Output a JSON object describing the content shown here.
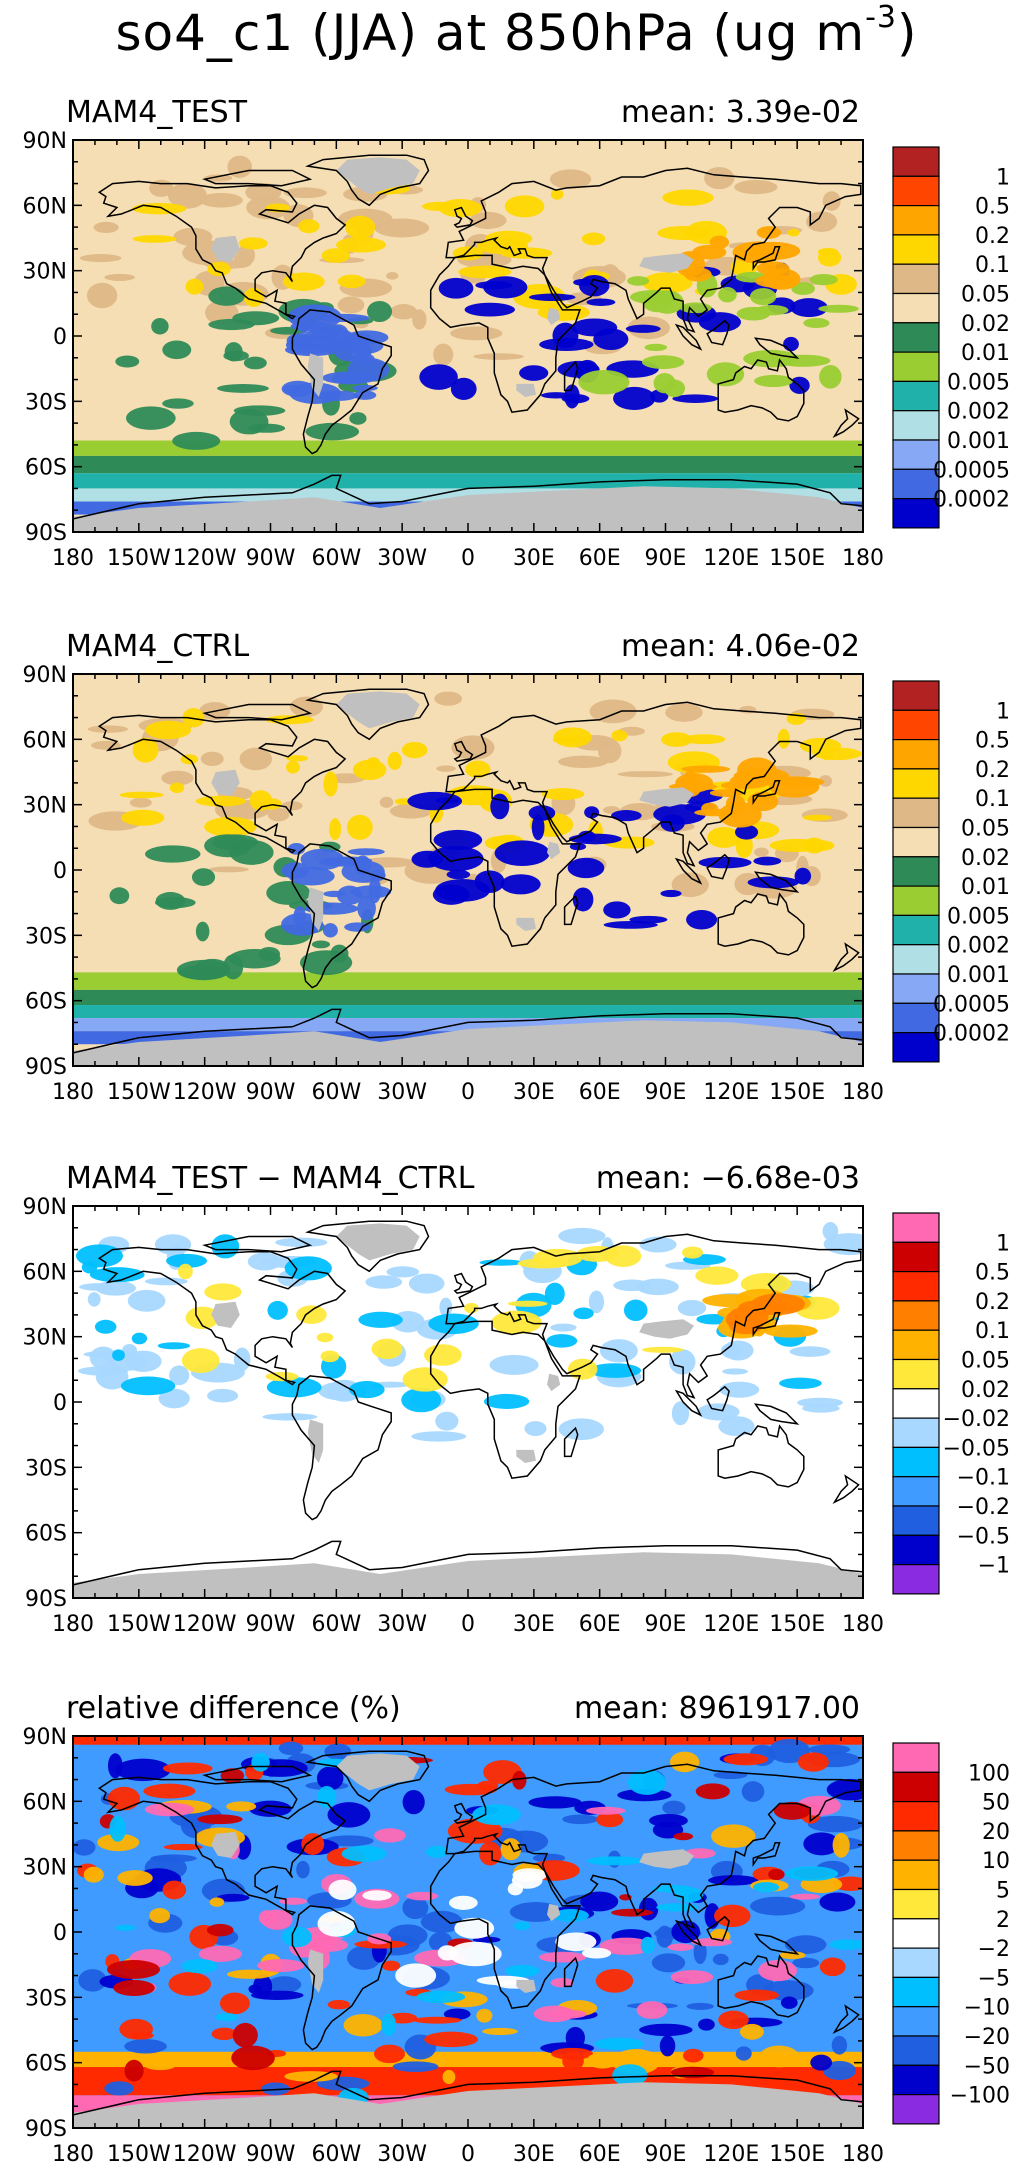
{
  "figure": {
    "title_main": "so4_c1 (JJA) at 850hPa (ug m",
    "title_exp": "-3",
    "title_close": ")"
  },
  "x_ticks": [
    "180",
    "150W",
    "120W",
    "90W",
    "60W",
    "30W",
    "0",
    "30E",
    "60E",
    "90E",
    "120E",
    "150E",
    "180"
  ],
  "y_ticks": [
    "90N",
    "60N",
    "30N",
    "0",
    "30S",
    "60S",
    "90S"
  ],
  "panels": [
    {
      "id": "test",
      "title": "MAM4_TEST",
      "mean_text": "mean: 3.39e-02",
      "colorbar": {
        "colors": [
          "#b22222",
          "#ff4500",
          "#ffa500",
          "#ffd700",
          "#deb887",
          "#f5deb3",
          "#2e8b57",
          "#9acd32",
          "#20b2aa",
          "#b0e0e6",
          "#87a9f5",
          "#4169e1",
          "#0000cd"
        ],
        "labels": [
          "1",
          "0.5",
          "0.2",
          "0.1",
          "0.05",
          "0.02",
          "0.01",
          "0.005",
          "0.002",
          "0.001",
          "0.0005",
          "0.0002"
        ]
      }
    },
    {
      "id": "ctrl",
      "title": "MAM4_CTRL",
      "mean_text": "mean: 4.06e-02",
      "colorbar": {
        "colors": [
          "#b22222",
          "#ff4500",
          "#ffa500",
          "#ffd700",
          "#deb887",
          "#f5deb3",
          "#2e8b57",
          "#9acd32",
          "#20b2aa",
          "#b0e0e6",
          "#87a9f5",
          "#4169e1",
          "#0000cd"
        ],
        "labels": [
          "1",
          "0.5",
          "0.2",
          "0.1",
          "0.05",
          "0.02",
          "0.01",
          "0.005",
          "0.002",
          "0.001",
          "0.0005",
          "0.0002"
        ]
      }
    },
    {
      "id": "diff",
      "title": "MAM4_TEST − MAM4_CTRL",
      "mean_text": "mean: −6.68e-03",
      "colorbar": {
        "colors": [
          "#ff69b4",
          "#cc0000",
          "#ff2a00",
          "#ff7f00",
          "#ffb300",
          "#ffe83a",
          "#ffffff",
          "#a8d8ff",
          "#00bfff",
          "#3f9bff",
          "#1f5fe0",
          "#0000cd",
          "#8a2be2"
        ],
        "labels": [
          "1",
          "0.5",
          "0.2",
          "0.1",
          "0.05",
          "0.02",
          "−0.02",
          "−0.05",
          "−0.1",
          "−0.2",
          "−0.5",
          "−1"
        ]
      }
    },
    {
      "id": "rel",
      "title": "relative difference (%)",
      "mean_text": "mean: 8961917.00",
      "colorbar": {
        "colors": [
          "#ff69b4",
          "#cc0000",
          "#ff2a00",
          "#ff7f00",
          "#ffb300",
          "#ffe83a",
          "#ffffff",
          "#a8d8ff",
          "#00bfff",
          "#3f9bff",
          "#1f5fe0",
          "#0000cd",
          "#8a2be2"
        ],
        "labels": [
          "100",
          "50",
          "20",
          "10",
          "5",
          "2",
          "−2",
          "−5",
          "−10",
          "−20",
          "−50",
          "−100"
        ]
      }
    }
  ],
  "colors": {
    "missing_land": "#c0c0c0",
    "coastline": "#000000"
  }
}
